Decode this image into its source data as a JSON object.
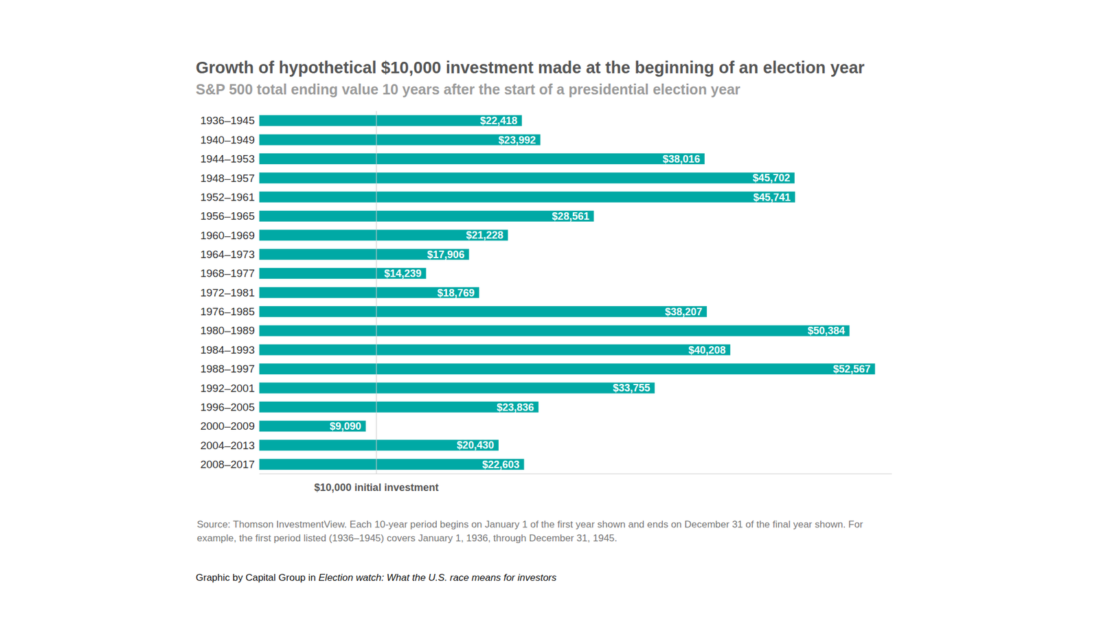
{
  "chart_data": {
    "type": "bar",
    "orientation": "horizontal",
    "title": "Growth of hypothetical $10,000 investment made at the beginning of an election year",
    "subtitle": "S&P 500 total ending value 10 years after the start of a presidential election year",
    "categories": [
      "1936–1945",
      "1940–1949",
      "1944–1953",
      "1948–1957",
      "1952–1961",
      "1956–1965",
      "1960–1969",
      "1964–1973",
      "1968–1977",
      "1972–1981",
      "1976–1985",
      "1980–1989",
      "1984–1993",
      "1988–1997",
      "1992–2001",
      "1996–2005",
      "2000–2009",
      "2004–2013",
      "2008–2017"
    ],
    "values": [
      22418,
      23992,
      38016,
      45702,
      45741,
      28561,
      21228,
      17906,
      14239,
      18769,
      38207,
      50384,
      40208,
      52567,
      33755,
      23836,
      9090,
      20430,
      22603
    ],
    "value_labels": [
      "$22,418",
      "$23,992",
      "$38,016",
      "$45,702",
      "$45,741",
      "$28,561",
      "$21,228",
      "$17,906",
      "$14,239",
      "$18,769",
      "$38,207",
      "$50,384",
      "$40,208",
      "$52,567",
      "$33,755",
      "$23,836",
      "$9,090",
      "$20,430",
      "$22,603"
    ],
    "color": "#00a9a5",
    "xlim": [
      0,
      54000
    ],
    "tick_labels": "y",
    "grid": false,
    "data_labels": true,
    "annotations": [
      {
        "x": 10000,
        "text": "$10,000 initial investment"
      }
    ],
    "source": "Source: Thomson InvestmentView. Each 10-year period begins on January 1 of the first year shown and ends on December 31 of the final year shown. For example, the first period listed (1936–1945) covers January 1, 1936, through December 31, 1945.",
    "credit": [
      "Graphic by Capital Group in",
      "Election watch: What the U.S. race means for investors"
    ]
  }
}
